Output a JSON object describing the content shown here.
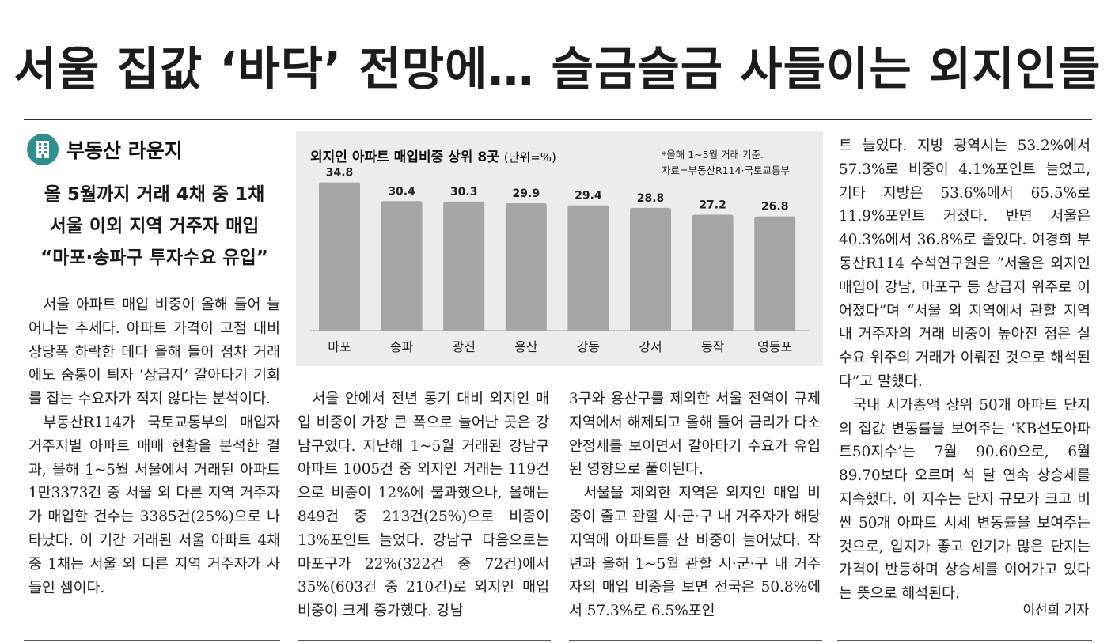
{
  "headline": "서울 집값 ‘바닥’ 전망에… 슬금슬금 사들이는 외지인들",
  "section": {
    "icon": "building-icon",
    "label": "부동산 라운지",
    "color": "#2f8f8a"
  },
  "subheads": [
    "올 5월까지 거래 4채 중 1채",
    "서울 이외 지역 거주자 매입",
    "“마포·송파구 투자수요 유입”"
  ],
  "col1": {
    "p1": "서울 아파트 매입 비중이 올해 들어 늘어나는 추세다. 아파트 가격이 고점 대비 상당폭 하락한 데다 올해 들어 점차 거래에도 숨통이 틔자 ‘상급지’ 갈아타기 기회를 잡는 수요자가 적지 않다는 분석이다.",
    "p2": "부동산R114가 국토교통부의 매입자 거주지별 아파트 매매 현황을 분석한 결과, 올해 1~5월 서울에서 거래된 아파트 1만3373건 중 서울 외 다른 지역 거주자가 매입한 건수는 3385건(25%)으로 나타났다. 이 기간 거래된 서울 아파트 4채 중 1채는 서울 외 다른 지역 거주자가 사들인 셈이다."
  },
  "col2": {
    "p1": "서울 안에서 전년 동기 대비 외지인 매입 비중이 가장 큰 폭으로 늘어난 곳은 강남구였다. 지난해 1~5월 거래된 강남구 아파트 1005건 중 외지인 거래는 119건으로 비중이 12%에 불과했으나, 올해는 849건 중 213건(25%)으로 비중이 13%포인트 늘었다. 강남구 다음으로는 마포구가 22%(322건 중 72건)에서 35%(603건 중 210건)로 외지인 매입 비중이 크게 증가했다. 강남"
  },
  "col3": {
    "p1": "3구와 용산구를 제외한 서울 전역이 규제지역에서 해제되고 올해 들어 금리가 다소 안정세를 보이면서 갈아타기 수요가 유입된 영향으로 풀이된다.",
    "p2": "서울을 제외한 지역은 외지인 매입 비중이 줄고 관할 시·군·구 내 거주자가 해당 지역에 아파트를 산 비중이 늘어났다. 작년과 올해 1~5월 관할 시·군·구 내 거주자의 매입 비중을 보면 전국은 50.8%에서 57.3%로 6.5%포인"
  },
  "col4": {
    "p1": "트 늘었다. 지방 광역시는 53.2%에서 57.3%로 비중이 4.1%포인트 늘었고, 기타 지방은 53.6%에서 65.5%로 11.9%포인트 커졌다. 반면 서울은 40.3%에서 36.8%로 줄었다. 여경희 부동산R114 수석연구원은 “서울은 외지인 매입이 강남, 마포구 등 상급지 위주로 이어졌다”며 “서울 외 지역에서 관할 지역 내 거주자의 거래 비중이 높아진 점은 실수요 위주의 거래가 이뤄진 것으로 해석된다”고 말했다.",
    "p2": "국내 시가총액 상위 50개 아파트 단지의 집값 변동률을 보여주는 ‘KB선도아파트50지수’는 7월 90.60으로, 6월 89.70보다 오르며 석 달 연속 상승세를 지속했다. 이 지수는 단지 규모가 크고 비싼 50개 아파트 시세 변동률을 보여주는 것으로, 입지가 좋고 인기가 많은 단지는 가격이 반등하며 상승세를 이어가고 있다는 뜻으로 해석된다."
  },
  "byline": "이선희 기자",
  "chart_title": "외지인 아파트 매입비중 상위 8곳",
  "chart_unit": "(단위=%)",
  "chart_note1": "*올해 1~5월 거래 기준.",
  "chart_note2": "자료=부동산R114·국토교통부",
  "chart_data": {
    "type": "bar",
    "title": "외지인 아파트 매입비중 상위 8곳",
    "unit": "(단위=%)",
    "categories": [
      "마포",
      "송파",
      "광진",
      "용산",
      "강동",
      "강서",
      "동작",
      "영등포"
    ],
    "values": [
      34.8,
      30.4,
      30.3,
      29.9,
      29.4,
      28.8,
      27.2,
      26.8
    ],
    "value_labels": [
      "34.8",
      "30.4",
      "30.3",
      "29.9",
      "29.4",
      "28.8",
      "27.2",
      "26.8"
    ],
    "ylim": [
      0,
      36
    ],
    "bar_color": "#a5a5a5",
    "grid": false,
    "legend": "none"
  }
}
